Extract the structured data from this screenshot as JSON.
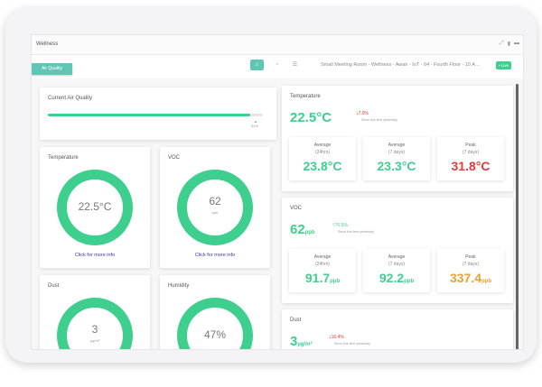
{
  "app": {
    "title": "Wellness"
  },
  "nav": {
    "tab": "Air Quality",
    "breadcrumb": "Small Meeting Room - Wellness - Awair - IoT - 04 - Fourth Floor - 10 A…",
    "live": "• Live"
  },
  "icons": {
    "view1": "home-icon",
    "view2": "chart-icon",
    "view3": "list-icon"
  },
  "colors": {
    "accent": "#3ecf8e",
    "warning": "#e03c3c",
    "caution": "#e8a22f",
    "link": "#3a34b8"
  },
  "air_quality": {
    "title": "Current Air Quality",
    "percent_label": "94%",
    "level": 0.94
  },
  "temperature_gauge": {
    "title": "Temperature",
    "value": "22.5°C",
    "link": "Click for more info"
  },
  "voc_gauge": {
    "title": "VOC",
    "value": "62",
    "unit": "ppb",
    "link": "Click for more info"
  },
  "dust_gauge": {
    "title": "Dust",
    "value": "3",
    "unit": "µg/m³"
  },
  "humidity_gauge": {
    "title": "Humidity",
    "value": "47%"
  },
  "temperature_panel": {
    "title": "Temperature",
    "value": "22.5°C",
    "delta": "7.9%",
    "delta_note": "Since this time yesterday",
    "stats": [
      {
        "line1": "Average",
        "line2": "(24hrs)",
        "value": "23.8°C",
        "unit": ""
      },
      {
        "line1": "Average",
        "line2": "(7 days)",
        "value": "23.3°C",
        "unit": ""
      },
      {
        "line1": "Peak",
        "line2": "(7 days)",
        "value": "31.8°C",
        "unit": ""
      }
    ]
  },
  "voc_panel": {
    "title": "VOC",
    "value": "62",
    "unit": "ppb",
    "delta": "76.5%",
    "delta_note": "Since this time yesterday",
    "stats": [
      {
        "line1": "Average",
        "line2": "(24hrs)",
        "value": "91.7",
        "unit": "ppb"
      },
      {
        "line1": "Average",
        "line2": "(7 days)",
        "value": "92.2",
        "unit": "ppb"
      },
      {
        "line1": "Peak",
        "line2": "(7 days)",
        "value": "337.4",
        "unit": "ppb"
      }
    ]
  },
  "dust_panel": {
    "title": "Dust",
    "value": "3",
    "unit": "µg/m³",
    "delta": "16.4%",
    "delta_note": "Since this time yesterday"
  }
}
